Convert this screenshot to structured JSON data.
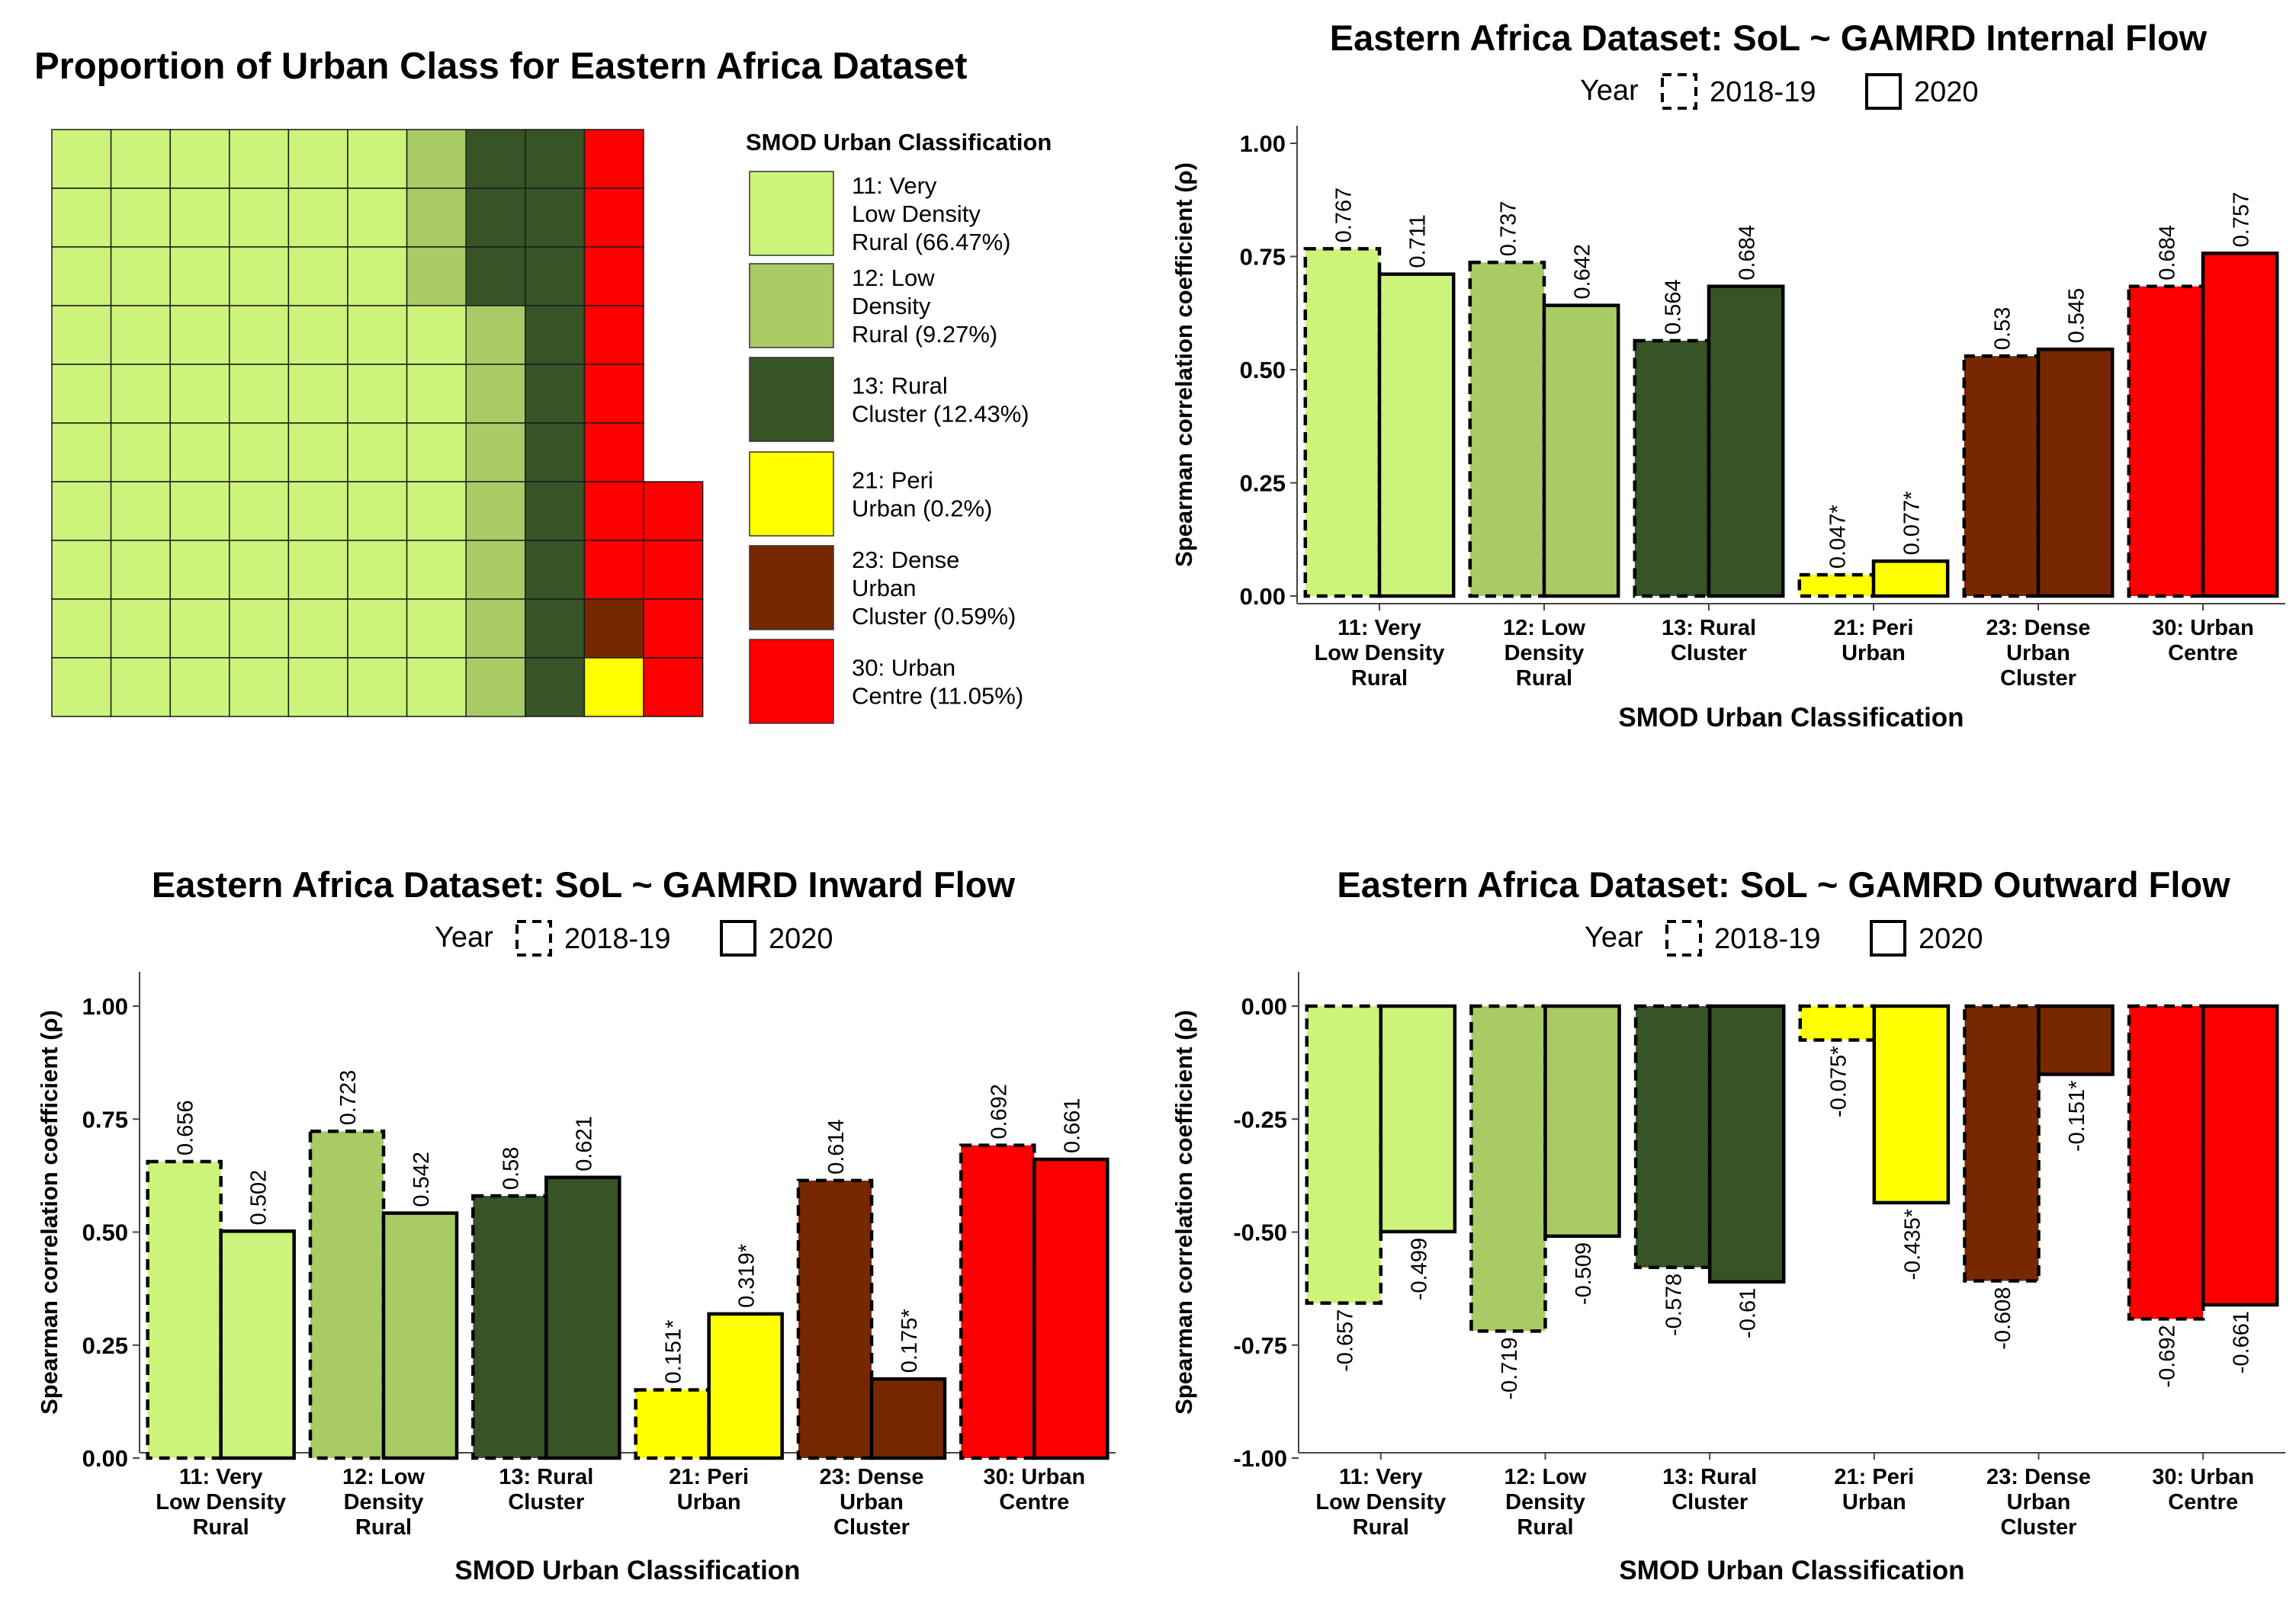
{
  "colors": {
    "c11": "#ccf47a",
    "c12": "#a8cb66",
    "c13": "#375427",
    "c21": "#ffff00",
    "c23": "#782800",
    "c30": "#ff0000"
  },
  "chart_data": [
    {
      "type": "waffle",
      "title": "Proportion of Urban Class for Eastern Africa Dataset",
      "legend_title": "SMOD Urban Classification",
      "legend": [
        {
          "key": "c11",
          "lines": [
            "11: Very",
            "Low Density",
            "Rural (66.47%)"
          ]
        },
        {
          "key": "c12",
          "lines": [
            "12: Low",
            "Density",
            "Rural (9.27%)"
          ]
        },
        {
          "key": "c13",
          "lines": [
            "13: Rural",
            "Cluster (12.43%)"
          ]
        },
        {
          "key": "c21",
          "lines": [
            "21: Peri",
            "Urban (0.2%)"
          ]
        },
        {
          "key": "c23",
          "lines": [
            "23: Dense",
            "Urban",
            "Cluster (0.59%)"
          ]
        },
        {
          "key": "c30",
          "lines": [
            "30: Urban",
            "Centre (11.05%)"
          ]
        }
      ],
      "classes": [
        {
          "key": "c11",
          "percent": 66.47
        },
        {
          "key": "c12",
          "percent": 9.27
        },
        {
          "key": "c13",
          "percent": 12.43
        },
        {
          "key": "c21",
          "percent": 0.2
        },
        {
          "key": "c23",
          "percent": 0.59
        },
        {
          "key": "c30",
          "percent": 11.05
        }
      ],
      "grid": [
        [
          "c11",
          "c11",
          "c11",
          "c11",
          "c11",
          "c11",
          "c12",
          "c13",
          "c13",
          "c30"
        ],
        [
          "c11",
          "c11",
          "c11",
          "c11",
          "c11",
          "c11",
          "c12",
          "c13",
          "c13",
          "c30"
        ],
        [
          "c11",
          "c11",
          "c11",
          "c11",
          "c11",
          "c11",
          "c12",
          "c13",
          "c13",
          "c30"
        ],
        [
          "c11",
          "c11",
          "c11",
          "c11",
          "c11",
          "c11",
          "c11",
          "c12",
          "c13",
          "c30"
        ],
        [
          "c11",
          "c11",
          "c11",
          "c11",
          "c11",
          "c11",
          "c11",
          "c12",
          "c13",
          "c30"
        ],
        [
          "c11",
          "c11",
          "c11",
          "c11",
          "c11",
          "c11",
          "c11",
          "c12",
          "c13",
          "c30"
        ],
        [
          "c11",
          "c11",
          "c11",
          "c11",
          "c11",
          "c11",
          "c11",
          "c12",
          "c13",
          "c30",
          "c30"
        ],
        [
          "c11",
          "c11",
          "c11",
          "c11",
          "c11",
          "c11",
          "c11",
          "c12",
          "c13",
          "c30",
          "c30"
        ],
        [
          "c11",
          "c11",
          "c11",
          "c11",
          "c11",
          "c11",
          "c11",
          "c12",
          "c13",
          "c23",
          "c30"
        ],
        [
          "c11",
          "c11",
          "c11",
          "c11",
          "c11",
          "c11",
          "c11",
          "c12",
          "c13",
          "c21",
          "c30"
        ]
      ]
    },
    {
      "type": "bar",
      "title": "Eastern Africa Dataset: SoL ~ GAMRD Internal Flow",
      "legend_title": "Year",
      "legend": [
        "2018-19",
        "2020"
      ],
      "xlabel": "SMOD Urban Classification",
      "ylabel": "Spearman correlation coefficient (ρ)",
      "ylim": [
        0,
        1
      ],
      "yticks": [
        "0.00",
        "0.25",
        "0.50",
        "0.75",
        "1.00"
      ],
      "yticks_values": [
        0,
        0.25,
        0.5,
        0.75,
        1.0
      ],
      "categories": [
        {
          "key": "c11",
          "lines": [
            "11: Very",
            "Low Density",
            "Rural"
          ]
        },
        {
          "key": "c12",
          "lines": [
            "12: Low",
            "Density",
            "Rural"
          ]
        },
        {
          "key": "c13",
          "lines": [
            "13: Rural",
            "Cluster"
          ]
        },
        {
          "key": "c21",
          "lines": [
            "21: Peri",
            "Urban"
          ]
        },
        {
          "key": "c23",
          "lines": [
            "23: Dense",
            "Urban",
            "Cluster"
          ]
        },
        {
          "key": "c30",
          "lines": [
            "30: Urban",
            "Centre"
          ]
        }
      ],
      "series": [
        {
          "name": "2018-19",
          "values": [
            0.767,
            0.737,
            0.564,
            0.047,
            0.53,
            0.684
          ],
          "labels": [
            "0.767",
            "0.737",
            "0.564",
            "0.047*",
            "0.53",
            "0.684"
          ]
        },
        {
          "name": "2020",
          "values": [
            0.711,
            0.642,
            0.684,
            0.077,
            0.545,
            0.757
          ],
          "labels": [
            "0.711",
            "0.642",
            "0.684",
            "0.077*",
            "0.545",
            "0.757"
          ]
        }
      ]
    },
    {
      "type": "bar",
      "title": "Eastern Africa Dataset: SoL ~ GAMRD Inward Flow",
      "legend_title": "Year",
      "legend": [
        "2018-19",
        "2020"
      ],
      "xlabel": "SMOD Urban Classification",
      "ylabel": "Spearman correlation coefficient (ρ)",
      "ylim": [
        0,
        1
      ],
      "yticks": [
        "0.00",
        "0.25",
        "0.50",
        "0.75",
        "1.00"
      ],
      "yticks_values": [
        0,
        0.25,
        0.5,
        0.75,
        1.0
      ],
      "categories": [
        {
          "key": "c11",
          "lines": [
            "11: Very",
            "Low Density",
            "Rural"
          ]
        },
        {
          "key": "c12",
          "lines": [
            "12: Low",
            "Density",
            "Rural"
          ]
        },
        {
          "key": "c13",
          "lines": [
            "13: Rural",
            "Cluster"
          ]
        },
        {
          "key": "c21",
          "lines": [
            "21: Peri",
            "Urban"
          ]
        },
        {
          "key": "c23",
          "lines": [
            "23: Dense",
            "Urban",
            "Cluster"
          ]
        },
        {
          "key": "c30",
          "lines": [
            "30: Urban",
            "Centre"
          ]
        }
      ],
      "series": [
        {
          "name": "2018-19",
          "values": [
            0.656,
            0.723,
            0.58,
            0.151,
            0.614,
            0.692
          ],
          "labels": [
            "0.656",
            "0.723",
            "0.58",
            "0.151*",
            "0.614",
            "0.692"
          ]
        },
        {
          "name": "2020",
          "values": [
            0.502,
            0.542,
            0.621,
            0.319,
            0.175,
            0.661
          ],
          "labels": [
            "0.502",
            "0.542",
            "0.621",
            "0.319*",
            "0.175*",
            "0.661"
          ]
        }
      ]
    },
    {
      "type": "bar",
      "title": "Eastern Africa Dataset: SoL ~ GAMRD Outward Flow",
      "legend_title": "Year",
      "legend": [
        "2018-19",
        "2020"
      ],
      "xlabel": "SMOD Urban Classification",
      "ylabel": "Spearman correlation coefficient (ρ)",
      "ylim": [
        -1,
        0
      ],
      "yticks": [
        "-1.00",
        "-0.75",
        "-0.50",
        "-0.25",
        "0.00"
      ],
      "yticks_values": [
        -1.0,
        -0.75,
        -0.5,
        -0.25,
        0
      ],
      "categories": [
        {
          "key": "c11",
          "lines": [
            "11: Very",
            "Low Density",
            "Rural"
          ]
        },
        {
          "key": "c12",
          "lines": [
            "12: Low",
            "Density",
            "Rural"
          ]
        },
        {
          "key": "c13",
          "lines": [
            "13: Rural",
            "Cluster"
          ]
        },
        {
          "key": "c21",
          "lines": [
            "21: Peri",
            "Urban"
          ]
        },
        {
          "key": "c23",
          "lines": [
            "23: Dense",
            "Urban",
            "Cluster"
          ]
        },
        {
          "key": "c30",
          "lines": [
            "30: Urban",
            "Centre"
          ]
        }
      ],
      "series": [
        {
          "name": "2018-19",
          "values": [
            -0.657,
            -0.719,
            -0.578,
            -0.075,
            -0.608,
            -0.692
          ],
          "labels": [
            "-0.657",
            "-0.719",
            "-0.578",
            "-0.075*",
            "-0.608",
            "-0.692"
          ]
        },
        {
          "name": "2020",
          "values": [
            -0.499,
            -0.509,
            -0.61,
            -0.435,
            -0.151,
            -0.661
          ],
          "labels": [
            "-0.499",
            "-0.509",
            "-0.61",
            "-0.435*",
            "-0.151*",
            "-0.661"
          ]
        }
      ]
    }
  ]
}
